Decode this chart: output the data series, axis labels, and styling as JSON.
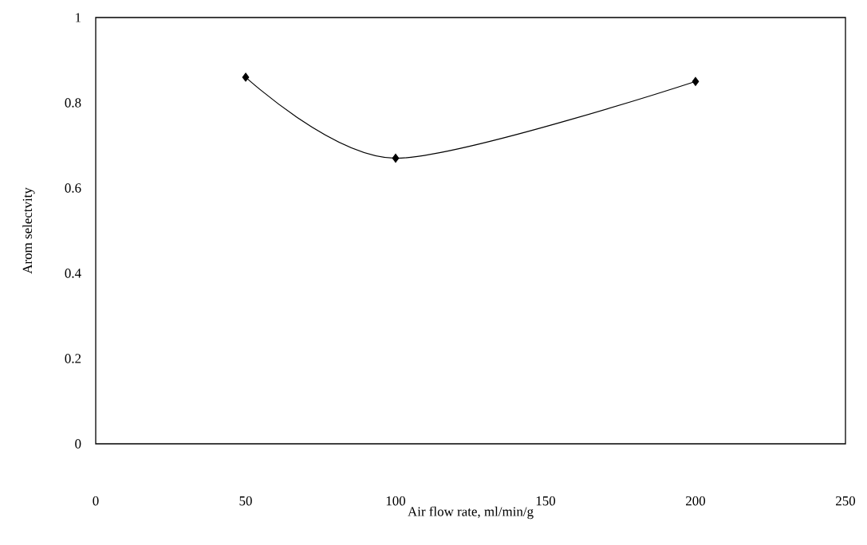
{
  "chart_data": {
    "type": "line",
    "xlabel": "Air flow rate, ml/min/g",
    "ylabel": "Arom selectvity",
    "x": [
      50,
      100,
      200
    ],
    "series": [
      {
        "color": "#000000",
        "values": [
          0.86,
          0.67,
          0.85
        ]
      }
    ],
    "xlim": [
      0,
      250
    ],
    "xticks": [
      0,
      50,
      100,
      150,
      200,
      250
    ],
    "ylim": [
      0,
      1
    ],
    "yticks": [
      0,
      0.2,
      0.4,
      0.6,
      0.8,
      1
    ],
    "marker": "diamond",
    "line_style": "solid",
    "grid": false
  }
}
